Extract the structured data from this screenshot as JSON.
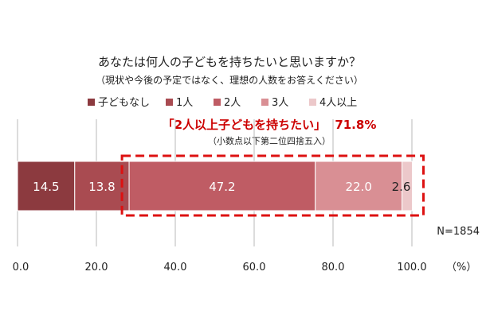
{
  "chart_data": {
    "type": "bar",
    "orientation": "horizontal-stacked",
    "title": "あなたは何人の子どもを持ちたいと思いますか？",
    "subtitle": "（現状や今後の予定ではなく、理想の人数をお答えください）",
    "legend": [
      "子どもなし",
      "1人",
      "2人",
      "3人",
      "4人以上"
    ],
    "legend_position": "top",
    "series": [
      {
        "name": "子どもなし",
        "value": 14.5,
        "label": "14.5",
        "color": "#8c3a3f"
      },
      {
        "name": "1人",
        "value": 13.8,
        "label": "13.8",
        "color": "#a94b51"
      },
      {
        "name": "2人",
        "value": 47.2,
        "label": "47.2",
        "color": "#bf5c64"
      },
      {
        "name": "3人",
        "value": 22.0,
        "label": "22.0",
        "color": "#d98f94"
      },
      {
        "name": "4人以上",
        "value": 2.6,
        "label": "2.6",
        "color": "#ecc8ca"
      }
    ],
    "annotation": {
      "main_quote": "「2人以上子どもを持ちたい」",
      "main_value": "71.8%",
      "note": "（小数点以下第二位四捨五入）",
      "color": "#cc0000"
    },
    "n_label": "N=1854",
    "x_ticks": [
      "0.0",
      "20.0",
      "40.0",
      "60.0",
      "80.0",
      "100.0"
    ],
    "x_unit": "（%）",
    "xlim": [
      0,
      100
    ],
    "grid": true
  }
}
